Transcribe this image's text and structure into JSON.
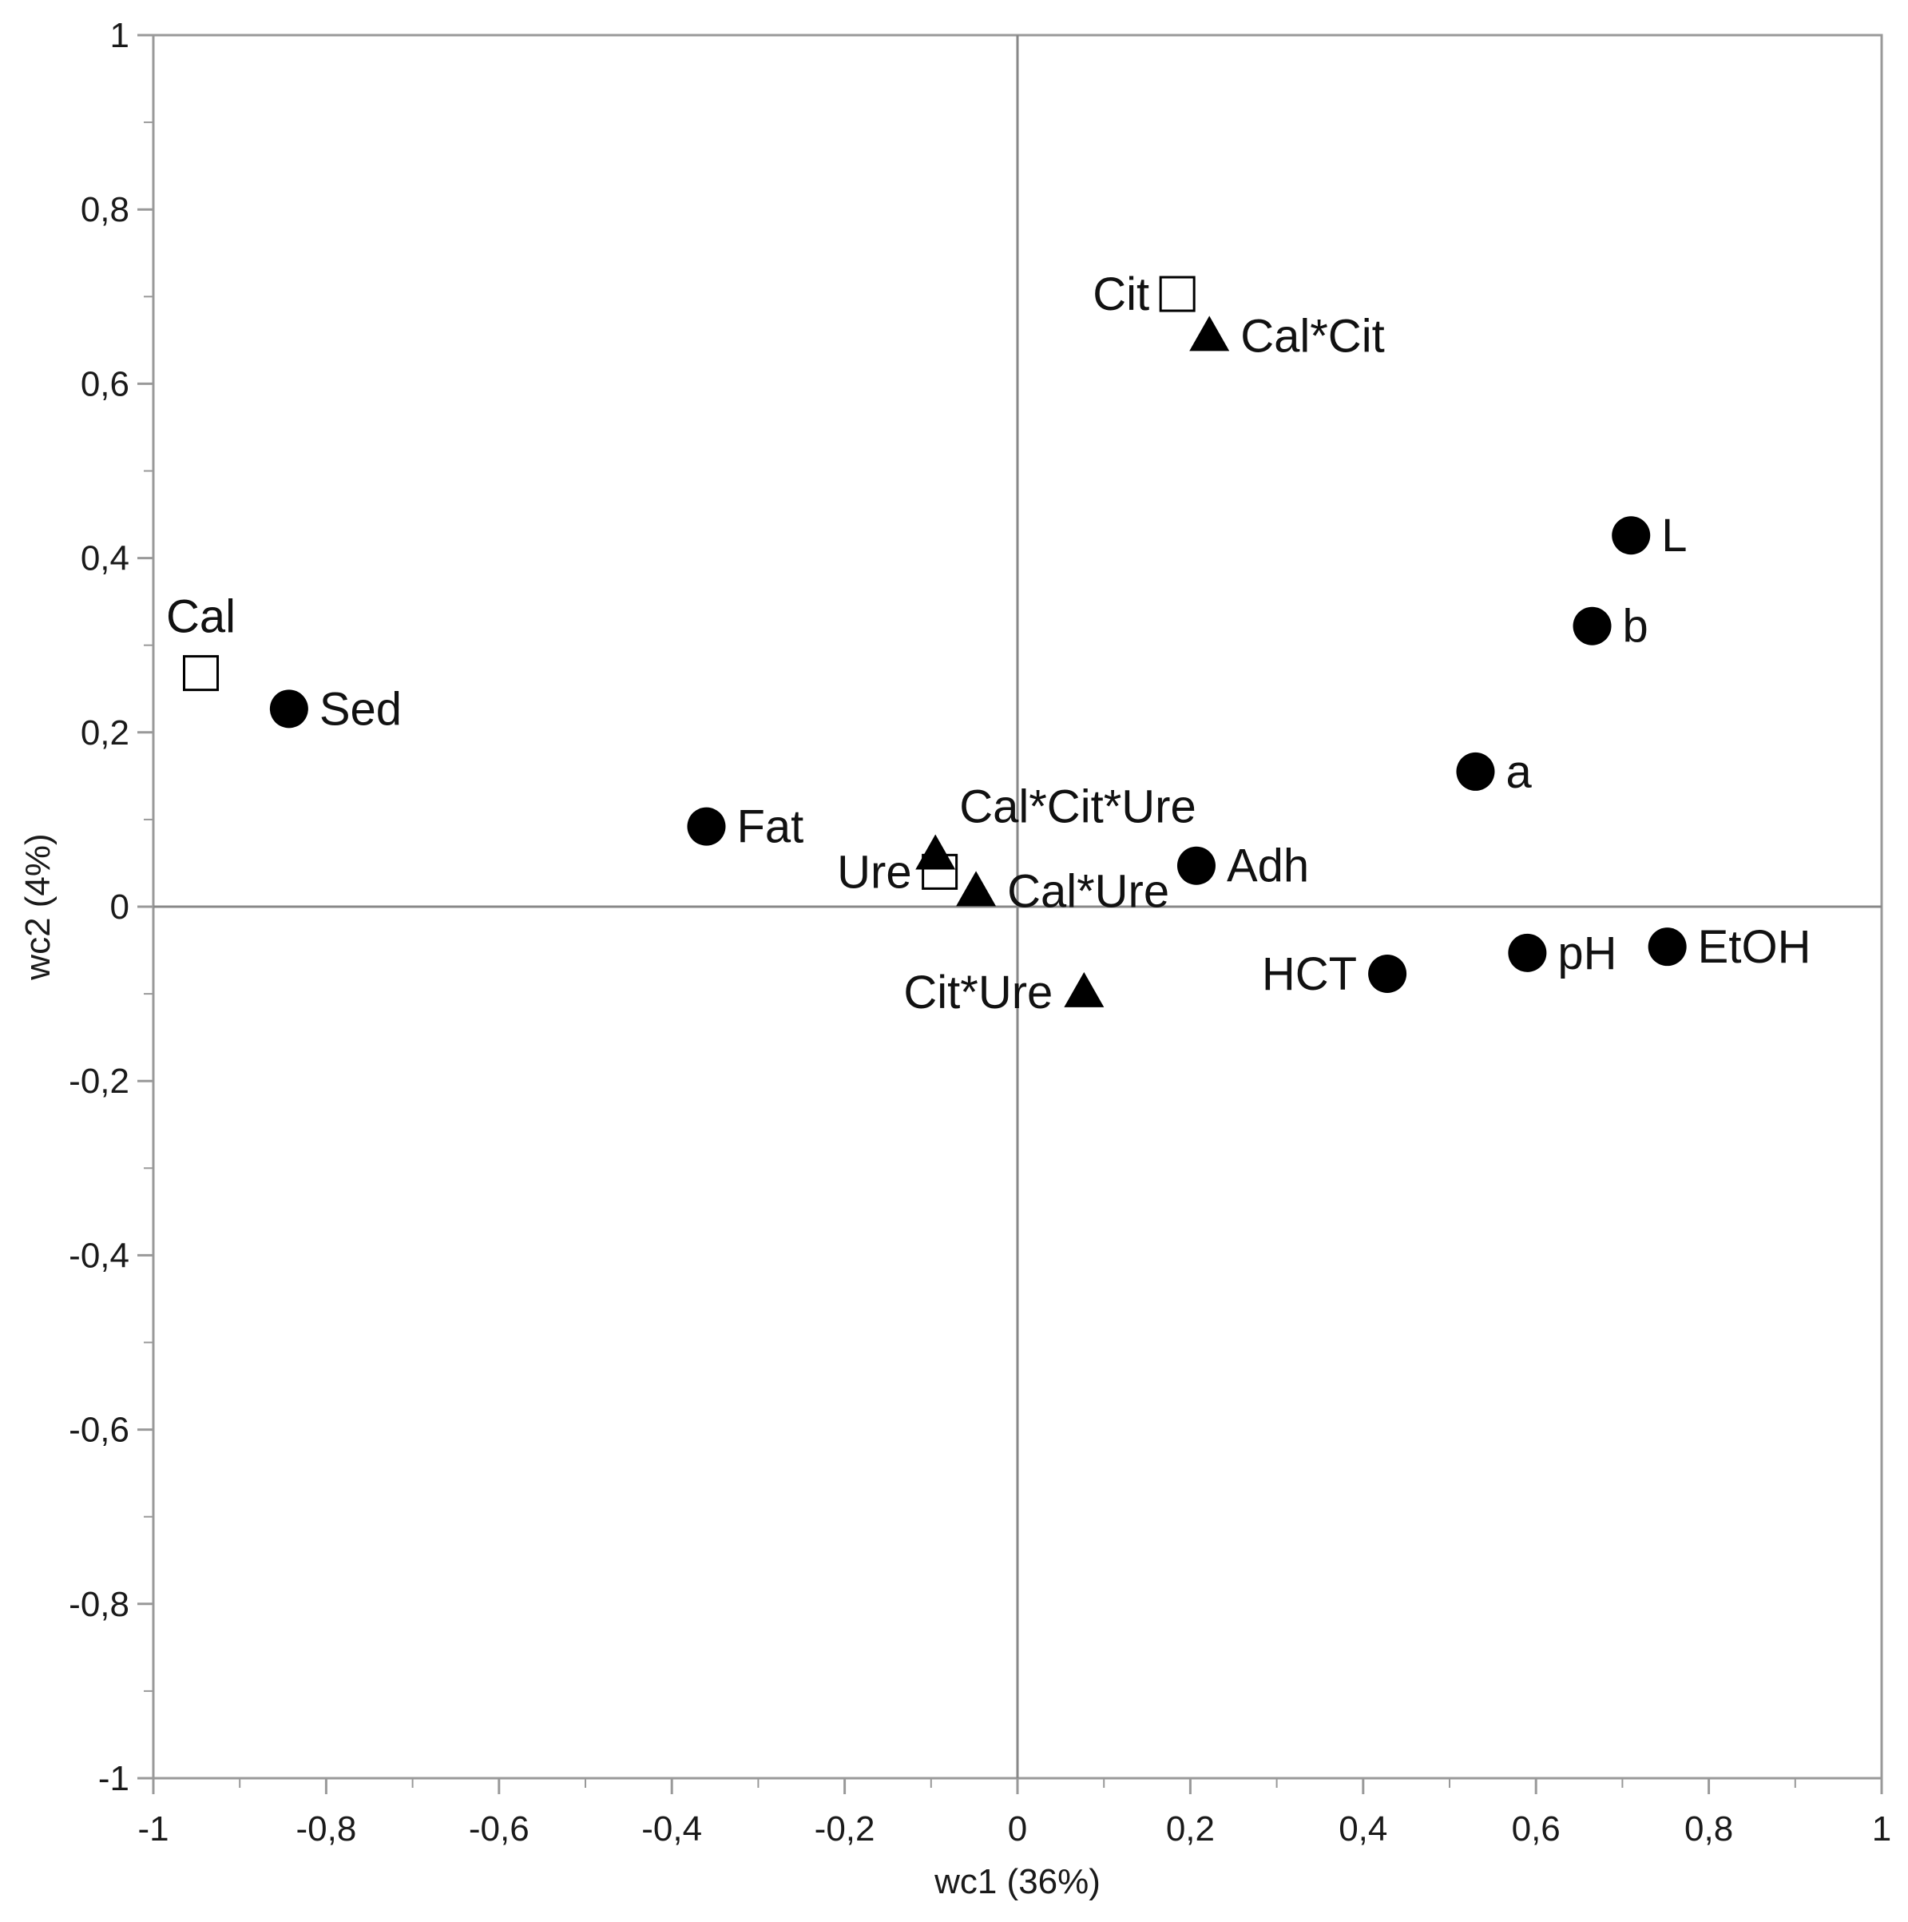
{
  "chart_data": {
    "type": "scatter",
    "title": "",
    "xlabel": "wc1 (36%)",
    "ylabel": "wc2 (4%)",
    "xlim": [
      -1,
      1
    ],
    "ylim": [
      -1,
      1
    ],
    "grid": false,
    "zero_lines": true,
    "x_ticks": [
      {
        "value": -1,
        "label": "-1"
      },
      {
        "value": -0.8,
        "label": "-0,8"
      },
      {
        "value": -0.6,
        "label": "-0,6"
      },
      {
        "value": -0.4,
        "label": "-0,4"
      },
      {
        "value": -0.2,
        "label": "-0,2"
      },
      {
        "value": 0,
        "label": "0"
      },
      {
        "value": 0.2,
        "label": "0,2"
      },
      {
        "value": 0.4,
        "label": "0,4"
      },
      {
        "value": 0.6,
        "label": "0,6"
      },
      {
        "value": 0.8,
        "label": "0,8"
      },
      {
        "value": 1,
        "label": "1"
      }
    ],
    "y_ticks": [
      {
        "value": -1,
        "label": "-1"
      },
      {
        "value": -0.8,
        "label": "-0,8"
      },
      {
        "value": -0.6,
        "label": "-0,6"
      },
      {
        "value": -0.4,
        "label": "-0,4"
      },
      {
        "value": -0.2,
        "label": "-0,2"
      },
      {
        "value": 0,
        "label": "0"
      },
      {
        "value": 0.2,
        "label": "0,2"
      },
      {
        "value": 0.4,
        "label": "0,4"
      },
      {
        "value": 0.6,
        "label": "0,6"
      },
      {
        "value": 0.8,
        "label": "0,8"
      },
      {
        "value": 1,
        "label": "1"
      }
    ],
    "series": [
      {
        "marker": "open-square",
        "points": [
          {
            "label": "Cal",
            "x": -0.945,
            "y": 0.268,
            "label_pos": "above"
          },
          {
            "label": "Cit",
            "x": 0.185,
            "y": 0.703,
            "label_pos": "left"
          },
          {
            "label": "Ure",
            "x": -0.09,
            "y": 0.04,
            "label_pos": "left"
          }
        ]
      },
      {
        "marker": "filled-triangle",
        "points": [
          {
            "label": "Cal*Cit",
            "x": 0.222,
            "y": 0.655,
            "label_pos": "right"
          },
          {
            "label": "Cal*Cit*Ure",
            "x": -0.095,
            "y": 0.06,
            "label_pos": "above-right"
          },
          {
            "label": "Cal*Ure",
            "x": -0.048,
            "y": 0.018,
            "label_pos": "right"
          },
          {
            "label": "Cit*Ure",
            "x": 0.077,
            "y": -0.098,
            "label_pos": "left"
          }
        ]
      },
      {
        "marker": "filled-circle",
        "points": [
          {
            "label": "Sed",
            "x": -0.843,
            "y": 0.227,
            "label_pos": "right"
          },
          {
            "label": "Fat",
            "x": -0.36,
            "y": 0.092,
            "label_pos": "right"
          },
          {
            "label": "Adh",
            "x": 0.207,
            "y": 0.047,
            "label_pos": "right"
          },
          {
            "label": "HCT",
            "x": 0.428,
            "y": -0.077,
            "label_pos": "left"
          },
          {
            "label": "pH",
            "x": 0.59,
            "y": -0.053,
            "label_pos": "right"
          },
          {
            "label": "EtOH",
            "x": 0.752,
            "y": -0.046,
            "label_pos": "right"
          },
          {
            "label": "a",
            "x": 0.53,
            "y": 0.155,
            "label_pos": "right"
          },
          {
            "label": "b",
            "x": 0.665,
            "y": 0.322,
            "label_pos": "right"
          },
          {
            "label": "L",
            "x": 0.71,
            "y": 0.426,
            "label_pos": "right"
          }
        ]
      }
    ],
    "colors": {
      "marker": "#000000",
      "axis": "#888888",
      "frame": "#999999"
    }
  }
}
